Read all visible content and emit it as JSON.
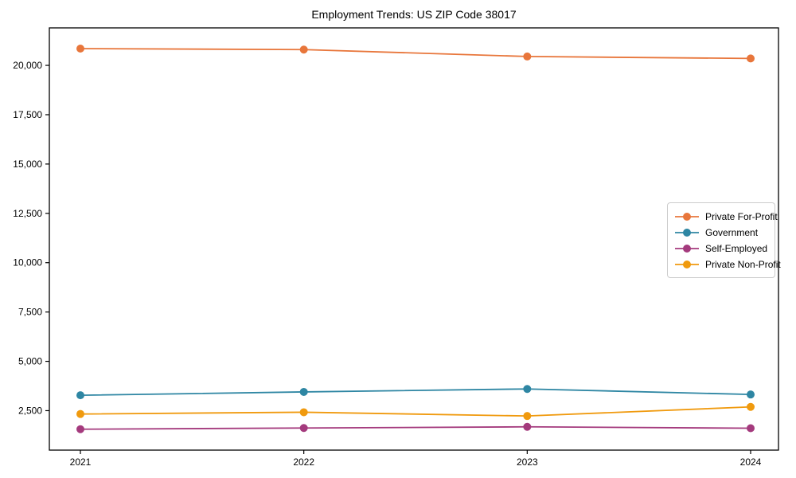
{
  "chart_data": {
    "type": "line",
    "title": "Employment Trends: US ZIP Code 38017",
    "xlabel": "",
    "ylabel": "",
    "categories": [
      "2021",
      "2022",
      "2023",
      "2024"
    ],
    "series": [
      {
        "name": "Private For-Profit",
        "color": "#e8763b",
        "values": [
          20850,
          20800,
          20450,
          20350
        ]
      },
      {
        "name": "Government",
        "color": "#2e86a3",
        "values": [
          3280,
          3450,
          3600,
          3320
        ]
      },
      {
        "name": "Self-Employed",
        "color": "#a43a7d",
        "values": [
          1560,
          1620,
          1680,
          1610
        ]
      },
      {
        "name": "Private Non-Profit",
        "color": "#f09a0e",
        "values": [
          2330,
          2420,
          2230,
          2690
        ]
      }
    ],
    "ylim": [
      500,
      21900
    ],
    "y_ticks": [
      {
        "value": 2500,
        "label": "2,500"
      },
      {
        "value": 5000,
        "label": "5,000"
      },
      {
        "value": 7500,
        "label": "7,500"
      },
      {
        "value": 10000,
        "label": "10,000"
      },
      {
        "value": 12500,
        "label": "12,500"
      },
      {
        "value": 15000,
        "label": "15,000"
      },
      {
        "value": 17500,
        "label": "17,500"
      },
      {
        "value": 20000,
        "label": "20,000"
      }
    ],
    "grid": false,
    "legend_position": "center right",
    "axis_color": "#000000",
    "marker": "circle",
    "marker_radius": 5
  }
}
